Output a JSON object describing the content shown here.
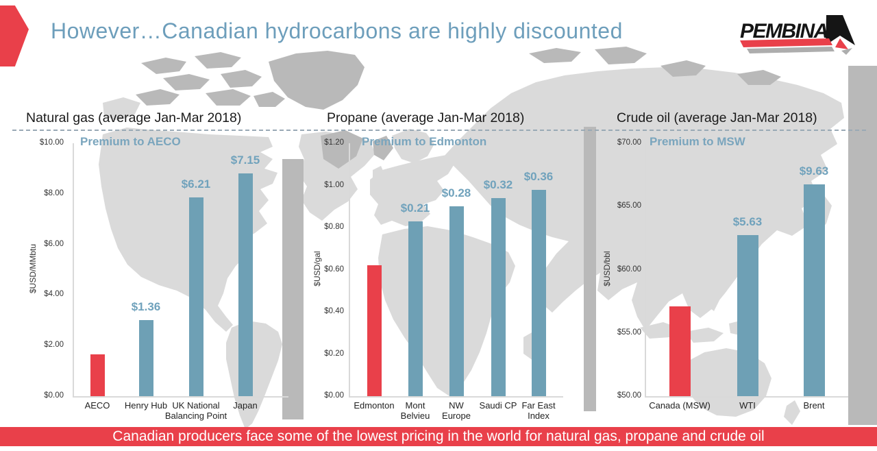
{
  "slide": {
    "title": "However…Canadian hydrocarbons are highly discounted",
    "logo_text": "PEMBINA",
    "banner": "Canadian producers face some of the lowest pricing in the world for natural gas, propane and crude oil"
  },
  "colors": {
    "accent_red": "#E9404A",
    "bar_blue": "#6EA0B5",
    "value_label_blue": "#70A2BC",
    "title_blue": "#6D9EBB",
    "subtitle_blue": "#7AA5BD",
    "banner_red": "#E9404A",
    "map_light_gray": "#DADADA",
    "map_dark_gray": "#B9B9B9",
    "axis_gray": "#D9D9D9"
  },
  "chart_data": [
    {
      "type": "bar",
      "title": "Natural gas (average Jan-Mar 2018)",
      "subtitle": "Premium to AECO",
      "ylabel": "$USD/MMbtu",
      "ylim": [
        0,
        10
      ],
      "grid": false,
      "legend": "none",
      "yticks": [
        {
          "value": 10,
          "label": "$10.00"
        },
        {
          "value": 8,
          "label": "$8.00"
        },
        {
          "value": 6,
          "label": "$6.00"
        },
        {
          "value": 4,
          "label": "$4.00"
        },
        {
          "value": 2,
          "label": "$2.00"
        },
        {
          "value": 0,
          "label": "$0.00"
        }
      ],
      "categories": [
        "AECO",
        "Henry Hub",
        "UK National Balancing Point",
        "Japan"
      ],
      "values": [
        1.65,
        3.01,
        7.86,
        8.8
      ],
      "bar_labels": [
        "",
        "$1.36",
        "$6.21",
        "$7.15"
      ],
      "bar_colors": [
        "red",
        "blue",
        "blue",
        "blue"
      ]
    },
    {
      "type": "bar",
      "title": "Propane (average Jan-Mar 2018)",
      "subtitle": "Premium to Edmonton",
      "ylabel": "$USD/gal",
      "ylim": [
        0,
        1.2
      ],
      "grid": false,
      "legend": "none",
      "yticks": [
        {
          "value": 1.2,
          "label": "$1.20"
        },
        {
          "value": 1.0,
          "label": "$1.00"
        },
        {
          "value": 0.8,
          "label": "$0.80"
        },
        {
          "value": 0.6,
          "label": "$0.60"
        },
        {
          "value": 0.4,
          "label": "$0.40"
        },
        {
          "value": 0.2,
          "label": "$0.20"
        },
        {
          "value": 0.0,
          "label": "$0.00"
        }
      ],
      "categories": [
        "Edmonton",
        "Mont Belvieu",
        "NW Europe",
        "Saudi CP",
        "Far East Index"
      ],
      "values": [
        0.62,
        0.83,
        0.9,
        0.94,
        0.98
      ],
      "bar_labels": [
        "",
        "$0.21",
        "$0.28",
        "$0.32",
        "$0.36"
      ],
      "bar_colors": [
        "red",
        "blue",
        "blue",
        "blue",
        "blue"
      ]
    },
    {
      "type": "bar",
      "title": "Crude oil (average Jan-Mar 2018)",
      "subtitle": "Premium to MSW",
      "ylabel": "$USD/bbl",
      "ylim": [
        50,
        70
      ],
      "grid": false,
      "legend": "none",
      "yticks": [
        {
          "value": 70,
          "label": "$70.00"
        },
        {
          "value": 65,
          "label": "$65.00"
        },
        {
          "value": 60,
          "label": "$60.00"
        },
        {
          "value": 55,
          "label": "$55.00"
        },
        {
          "value": 50,
          "label": "$50.00"
        }
      ],
      "categories": [
        "Canada (MSW)",
        "WTI",
        "Brent"
      ],
      "values": [
        57.1,
        62.73,
        66.73
      ],
      "bar_labels": [
        "",
        "$5.63",
        "$9.63"
      ],
      "bar_colors": [
        "red",
        "blue",
        "blue"
      ]
    }
  ]
}
